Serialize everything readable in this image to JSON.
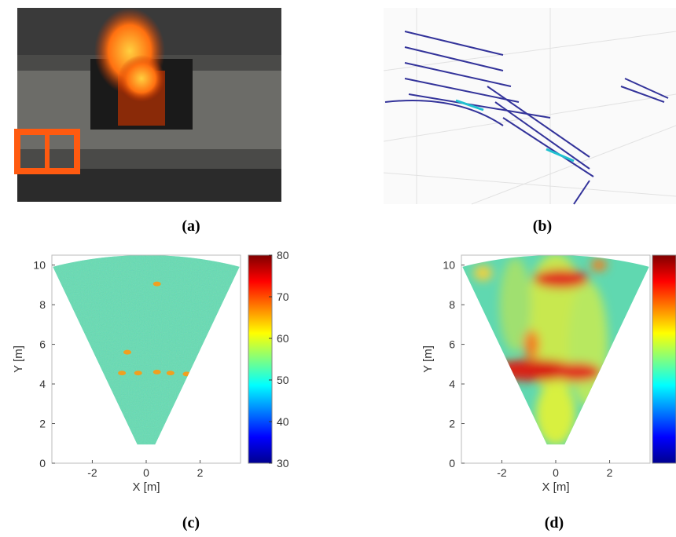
{
  "panel_labels": [
    "(a)",
    "(b)",
    "(c)",
    "(d)"
  ],
  "plots": [
    {
      "x_label": "X [m]",
      "y_label": "Y [m]",
      "xlim": [
        -3.5,
        3.5
      ],
      "ylim": [
        0,
        10.5
      ],
      "xticks": [
        -2,
        0,
        2
      ],
      "yticks": [
        0,
        2,
        4,
        6,
        8,
        10
      ],
      "clim": [
        30,
        80
      ],
      "cticks": [
        30,
        40,
        50,
        60,
        70,
        80
      ]
    },
    {
      "x_label": "X [m]",
      "y_label": "Y [m]",
      "xlim": [
        -3.5,
        3.5
      ],
      "ylim": [
        0,
        10.5
      ],
      "xticks": [
        -2,
        0,
        2
      ],
      "yticks": [
        0,
        2,
        4,
        6,
        8,
        10
      ]
    }
  ]
}
